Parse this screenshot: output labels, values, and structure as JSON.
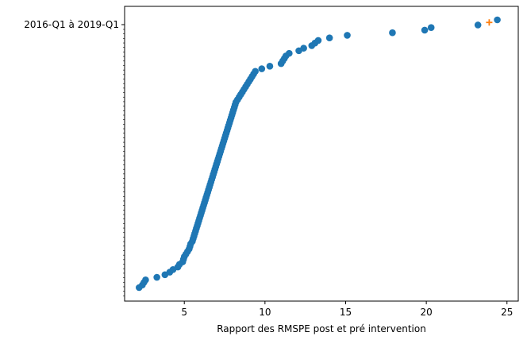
{
  "chart_data": {
    "type": "scatter",
    "title": "",
    "xlabel": "Rapport des RMSPE post et pré intervention",
    "ylabel": "",
    "xlim": [
      1.3,
      25.7
    ],
    "x_ticks": [
      5,
      10,
      15,
      20,
      25
    ],
    "x_tick_labels": [
      "5",
      "10",
      "15",
      "20",
      "25"
    ],
    "y_tick_labels": [
      "2016-Q1 à 2019-Q1"
    ],
    "grid": false,
    "legend": "none",
    "series": [
      {
        "color": "#1f77b4",
        "marker": "circle",
        "values": [
          2.2,
          2.4,
          2.5,
          2.6,
          3.3,
          3.8,
          4.1,
          4.3,
          4.6,
          4.7,
          4.9,
          4.95,
          5.0,
          5.1,
          5.2,
          5.3,
          5.35,
          5.4,
          5.5,
          5.55,
          5.6,
          5.65,
          5.7,
          5.75,
          5.8,
          5.85,
          5.9,
          5.95,
          6.0,
          6.05,
          6.1,
          6.15,
          6.2,
          6.25,
          6.3,
          6.35,
          6.4,
          6.45,
          6.5,
          6.55,
          6.6,
          6.65,
          6.7,
          6.75,
          6.8,
          6.85,
          6.9,
          6.95,
          7.0,
          7.05,
          7.1,
          7.15,
          7.2,
          7.25,
          7.3,
          7.35,
          7.4,
          7.45,
          7.5,
          7.55,
          7.6,
          7.65,
          7.7,
          7.75,
          7.8,
          7.85,
          7.9,
          7.95,
          8.0,
          8.05,
          8.1,
          8.15,
          8.2,
          8.3,
          8.4,
          8.5,
          8.6,
          8.7,
          8.8,
          8.9,
          9.0,
          9.1,
          9.2,
          9.3,
          9.4,
          9.8,
          10.3,
          11.0,
          11.1,
          11.2,
          11.3,
          11.5,
          12.1,
          12.4,
          12.9,
          13.1,
          13.3,
          14.0,
          15.1,
          17.9,
          19.9,
          20.3,
          23.2,
          24.4
        ]
      },
      {
        "color": "#ff7f0e",
        "marker": "plus",
        "values": [
          23.9
        ]
      }
    ]
  }
}
